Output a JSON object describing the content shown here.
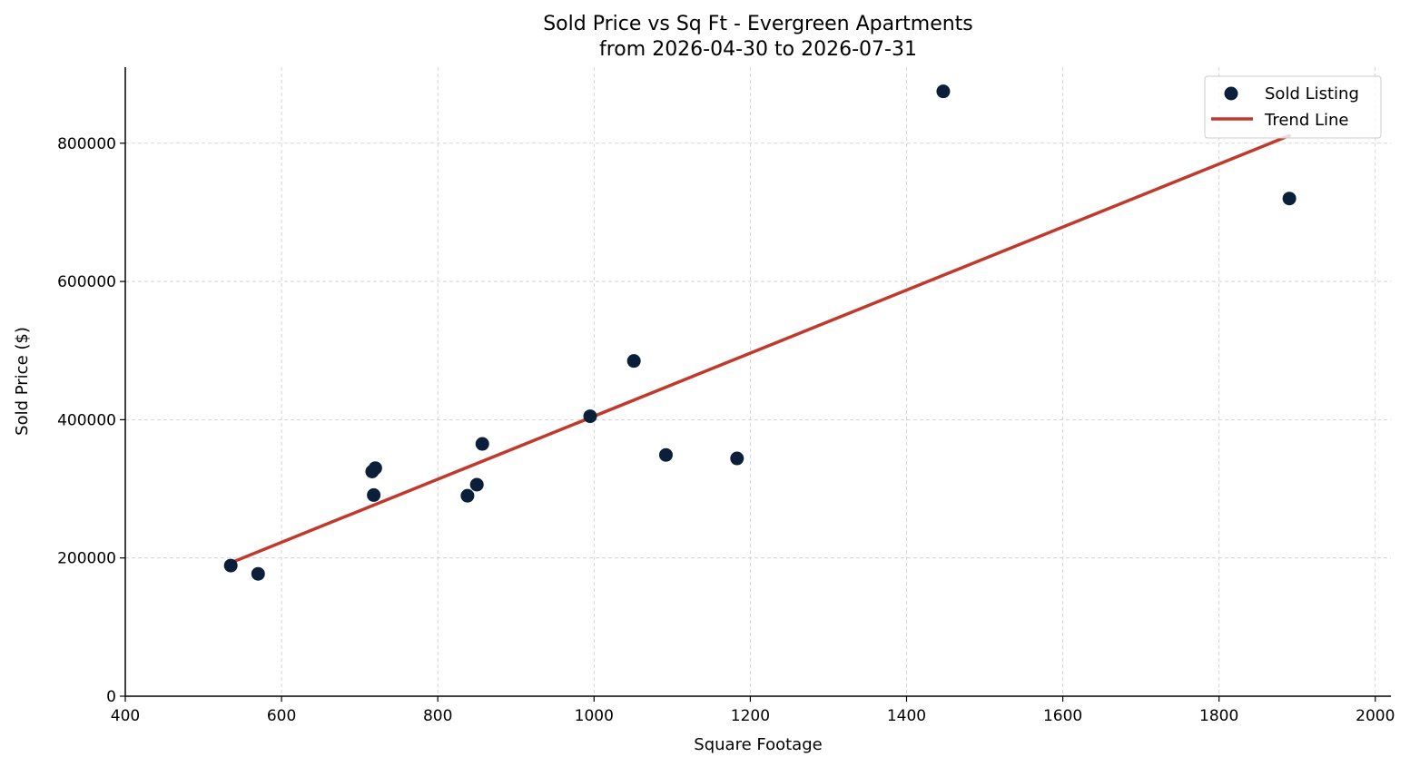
{
  "chart_data": {
    "type": "scatter",
    "title": [
      "Sold Price vs Sq Ft - Evergreen Apartments",
      "from 2026-04-30 to 2026-07-31"
    ],
    "xlabel": "Square Footage",
    "ylabel": "Sold Price ($)",
    "xlim": [
      400,
      2020
    ],
    "ylim": [
      0,
      910000
    ],
    "x_ticks": [
      400,
      600,
      800,
      1000,
      1200,
      1400,
      1600,
      1800,
      2000
    ],
    "y_ticks": [
      0,
      200000,
      400000,
      600000,
      800000
    ],
    "grid": true,
    "legend_position": "top-right",
    "series": [
      {
        "name": "Sold Listing",
        "type": "scatter",
        "color": "#0b1f3a",
        "points": [
          {
            "x": 535,
            "y": 189000
          },
          {
            "x": 570,
            "y": 177000
          },
          {
            "x": 716,
            "y": 325000
          },
          {
            "x": 718,
            "y": 291000
          },
          {
            "x": 720,
            "y": 330000
          },
          {
            "x": 838,
            "y": 290000
          },
          {
            "x": 850,
            "y": 306000
          },
          {
            "x": 857,
            "y": 365000
          },
          {
            "x": 995,
            "y": 405000
          },
          {
            "x": 1051,
            "y": 485000
          },
          {
            "x": 1092,
            "y": 349000
          },
          {
            "x": 1183,
            "y": 344000
          },
          {
            "x": 1447,
            "y": 875000
          },
          {
            "x": 1890,
            "y": 720000
          }
        ]
      },
      {
        "name": "Trend Line",
        "type": "line",
        "color": "#c0392b",
        "points": [
          {
            "x": 535,
            "y": 193000
          },
          {
            "x": 1890,
            "y": 811000
          }
        ]
      }
    ]
  }
}
